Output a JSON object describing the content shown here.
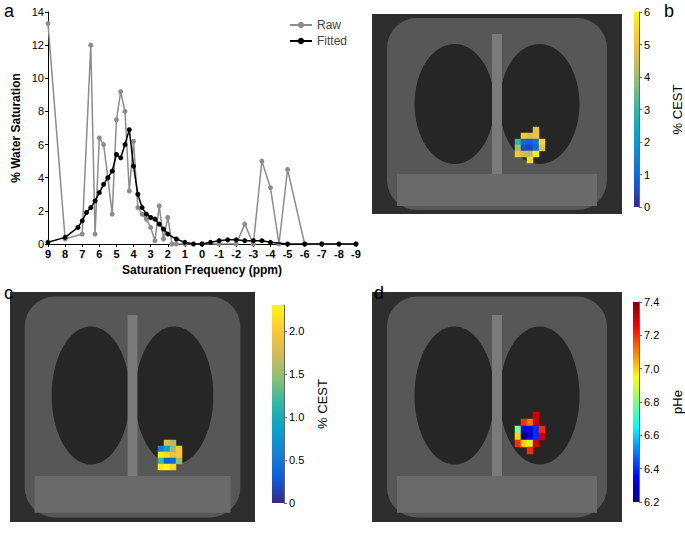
{
  "chart_data": [
    {
      "type": "line",
      "title": "a",
      "x_label": "Saturation Frequency (ppm)",
      "y_label": "% Water Saturation",
      "xlim": [
        9,
        -9
      ],
      "xticks": [
        9,
        8,
        7,
        6,
        5,
        4,
        3,
        2,
        1,
        0,
        -1,
        -2,
        -3,
        -4,
        -5,
        -6,
        -7,
        -8,
        -9
      ],
      "ylim": [
        0,
        14
      ],
      "yticks": [
        0,
        2,
        4,
        6,
        8,
        10,
        12,
        14
      ],
      "grid": false,
      "legend": "upper right",
      "series": [
        {
          "name": "Raw",
          "color": "#8c8c8c",
          "marker": "circle",
          "x": [
            9,
            8,
            7,
            6.5,
            6.25,
            6,
            5.75,
            5.5,
            5.25,
            5,
            4.75,
            4.5,
            4.25,
            4,
            3.75,
            3.5,
            3.25,
            3,
            2.75,
            2.5,
            2.25,
            2,
            1.75,
            1.5,
            1,
            0,
            -1,
            -2,
            -2.5,
            -3,
            -3.5,
            -4,
            -4.5,
            -5,
            -6,
            -7,
            -9
          ],
          "values": [
            13.3,
            0.3,
            0.6,
            12,
            0.6,
            6.4,
            6,
            4,
            1.8,
            7.5,
            9.2,
            8,
            3.2,
            6.2,
            2.2,
            1.8,
            1.5,
            1,
            0.2,
            2.3,
            0.3,
            1.6,
            0,
            0,
            0,
            0,
            0,
            0,
            1.2,
            0,
            5,
            3.4,
            0,
            4.5,
            0,
            0,
            0
          ]
        },
        {
          "name": "Fitted",
          "color": "#000000",
          "marker": "circle",
          "x": [
            9,
            8,
            7.25,
            7,
            6.75,
            6.5,
            6.25,
            6,
            5.75,
            5.5,
            5.25,
            5,
            4.75,
            4.5,
            4.25,
            4,
            3.75,
            3.5,
            3.25,
            3,
            2.75,
            2.5,
            2.25,
            2,
            1.5,
            1,
            0.5,
            0,
            -0.5,
            -1,
            -1.5,
            -2,
            -2.5,
            -3,
            -3.5,
            -4,
            -5,
            -6,
            -7,
            -8,
            -9
          ],
          "values": [
            0.1,
            0.4,
            1,
            1.4,
            1.9,
            2.2,
            2.6,
            3.1,
            3.6,
            4,
            4.4,
            5.4,
            5.2,
            6,
            6.9,
            4.7,
            3,
            2.2,
            1.8,
            1.6,
            1.5,
            1.2,
            0.9,
            0.6,
            0.3,
            0.1,
            0,
            0,
            0.1,
            0.2,
            0.25,
            0.25,
            0.2,
            0.2,
            0.2,
            0.1,
            0,
            0,
            0,
            0,
            0
          ]
        }
      ]
    },
    {
      "type": "heatmap",
      "title": "b",
      "tick_labels": false,
      "cells": [
        [
          null,
          null,
          null,
          4.8,
          null
        ],
        [
          null,
          5.2,
          4.6,
          5.0,
          null
        ],
        [
          3.0,
          1.0,
          0.8,
          1.2,
          5.5
        ],
        [
          4.0,
          0.5,
          0.4,
          1.0,
          4.8
        ],
        [
          5.0,
          4.5,
          4.2,
          5.8,
          null
        ],
        [
          null,
          null,
          5.5,
          null,
          null
        ]
      ],
      "colorbar": {
        "label": "% CEST",
        "range": [
          0,
          6
        ],
        "ticks": [
          0,
          1,
          2,
          3,
          4,
          5,
          6
        ],
        "colors": [
          "#352a87",
          "#0f5cdd",
          "#1481d6",
          "#06a4ca",
          "#2eb7a4",
          "#87bf77",
          "#d1bb59",
          "#fec832",
          "#f9fb0e"
        ]
      }
    },
    {
      "type": "heatmap",
      "title": "c",
      "tick_labels": false,
      "cells": [
        [
          null,
          1.8,
          1.6,
          null
        ],
        [
          0.6,
          0.9,
          1.5,
          2.0
        ],
        [
          2.2,
          2.1,
          1.9,
          2.0
        ],
        [
          1.2,
          0.3,
          0.4,
          1.5
        ],
        [
          2.2,
          2.3,
          2.1,
          null
        ]
      ],
      "colorbar": {
        "label": "% CEST",
        "range": [
          0,
          2.3
        ],
        "ticks": [
          0,
          0.5,
          {
            "value": 1,
            "label": "1.0"
          },
          1.5,
          {
            "value": 2,
            "label": "2.0"
          }
        ],
        "colors": [
          "#352a87",
          "#0f5cdd",
          "#1481d6",
          "#06a4ca",
          "#2eb7a4",
          "#87bf77",
          "#d1bb59",
          "#fec832",
          "#f9fb0e"
        ]
      }
    },
    {
      "type": "heatmap",
      "title": "d",
      "tick_labels": false,
      "cells": [
        [
          null,
          null,
          null,
          7.3,
          null
        ],
        [
          null,
          7.2,
          7.1,
          7.3,
          null
        ],
        [
          6.8,
          6.3,
          6.3,
          6.4,
          7.2
        ],
        [
          7.0,
          6.2,
          6.3,
          6.4,
          7.3
        ],
        [
          7.2,
          7.0,
          6.9,
          7.3,
          null
        ],
        [
          null,
          null,
          7.2,
          null,
          null
        ]
      ],
      "colorbar": {
        "label": "pHe",
        "range": [
          6.2,
          7.4
        ],
        "ticks": [
          6.2,
          6.4,
          6.6,
          6.8,
          {
            "value": 7,
            "label": "7.0"
          },
          7.2,
          7.4
        ],
        "colors": [
          "#00007f",
          "#0000ff",
          "#007fff",
          "#00ffff",
          "#7fff7f",
          "#ffff00",
          "#ff7f00",
          "#ff0000",
          "#7f0000"
        ]
      }
    }
  ]
}
